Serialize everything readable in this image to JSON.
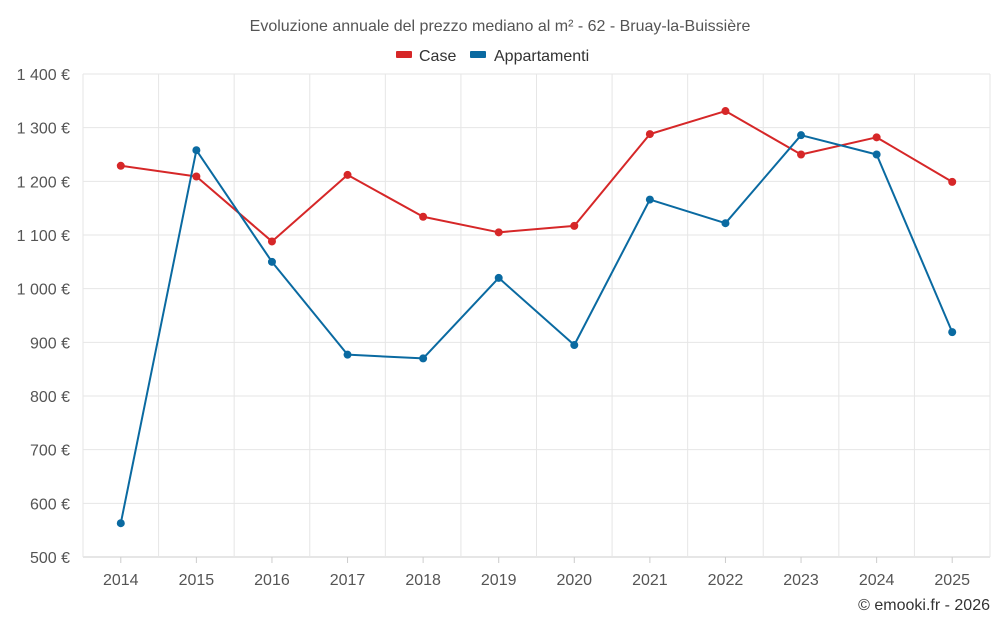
{
  "chart_data": {
    "type": "line",
    "title": "Evoluzione annuale del prezzo mediano al m² - 62 - Bruay-la-Buissière",
    "categories": [
      "2014",
      "2015",
      "2016",
      "2017",
      "2018",
      "2019",
      "2020",
      "2021",
      "2022",
      "2023",
      "2024",
      "2025"
    ],
    "series": [
      {
        "name": "Case",
        "color": "#d62728",
        "values": [
          1229,
          1209,
          1088,
          1212,
          1134,
          1105,
          1117,
          1288,
          1331,
          1250,
          1282,
          1199
        ]
      },
      {
        "name": "Appartamenti",
        "color": "#0a6aa1",
        "values": [
          563,
          1258,
          1050,
          877,
          870,
          1020,
          895,
          1166,
          1122,
          1286,
          1250,
          919
        ]
      }
    ],
    "ylim": [
      500,
      1400
    ],
    "yticks": [
      {
        "value": 500,
        "label": "500 €"
      },
      {
        "value": 600,
        "label": "600 €"
      },
      {
        "value": 700,
        "label": "700 €"
      },
      {
        "value": 800,
        "label": "800 €"
      },
      {
        "value": 900,
        "label": "900 €"
      },
      {
        "value": 1000,
        "label": "1 000 €"
      },
      {
        "value": 1100,
        "label": "1 100 €"
      },
      {
        "value": 1200,
        "label": "1 200 €"
      },
      {
        "value": 1300,
        "label": "1 300 €"
      },
      {
        "value": 1400,
        "label": "1 400 €"
      }
    ],
    "xlabel": "",
    "ylabel": "",
    "grid": true,
    "legend_position": "top-center",
    "credit": "© emooki.fr - 2026"
  }
}
